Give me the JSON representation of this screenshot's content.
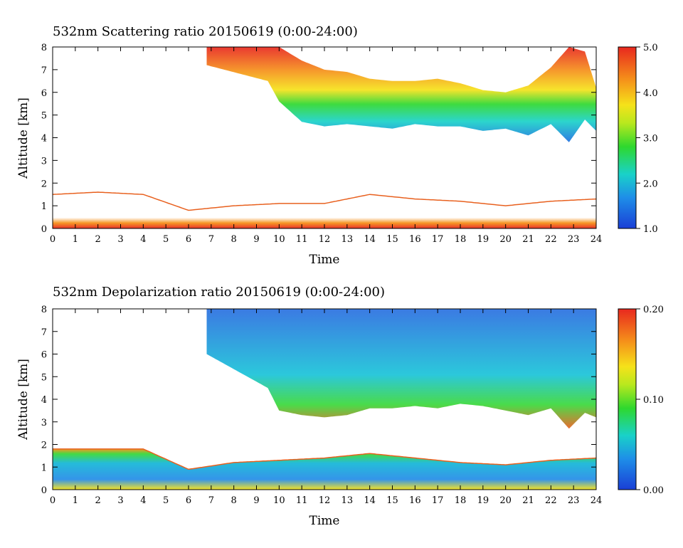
{
  "chart_data": [
    {
      "type": "heatmap",
      "title": "532nm Scattering ratio  20150619 (0:00-24:00)",
      "xlabel": "Time",
      "ylabel": "Altitude [km]",
      "xlim": [
        0,
        24
      ],
      "ylim": [
        0,
        8
      ],
      "x_ticks": [
        "0",
        "1",
        "2",
        "3",
        "4",
        "5",
        "6",
        "7",
        "8",
        "9",
        "10",
        "11",
        "12",
        "13",
        "14",
        "15",
        "16",
        "17",
        "18",
        "19",
        "20",
        "21",
        "22",
        "23",
        "24"
      ],
      "y_ticks": [
        "0",
        "1",
        "2",
        "3",
        "4",
        "5",
        "6",
        "7",
        "8"
      ],
      "colorbar": {
        "min": 1.0,
        "max": 5.0,
        "ticks": [
          "1.0",
          "2.0",
          "3.0",
          "4.0",
          "5.0"
        ]
      },
      "cloud_layers": [
        {
          "name": "upper cloud top",
          "t": [
            6.8,
            9.5,
            10,
            11,
            12,
            13,
            14,
            15,
            16,
            17,
            18,
            19,
            20,
            21,
            22,
            22.8,
            23.5,
            24
          ],
          "alt": [
            8.0,
            8.0,
            8.0,
            7.4,
            7.0,
            6.9,
            6.6,
            6.5,
            6.5,
            6.6,
            6.4,
            6.1,
            6.0,
            6.3,
            7.1,
            8.0,
            7.8,
            6.2
          ]
        },
        {
          "name": "upper cloud base",
          "t": [
            6.8,
            9.5,
            10,
            11,
            12,
            13,
            14,
            15,
            16,
            17,
            18,
            19,
            20,
            21,
            22,
            22.8,
            23.5,
            24
          ],
          "alt": [
            7.2,
            6.5,
            5.6,
            4.7,
            4.5,
            4.6,
            4.5,
            4.4,
            4.6,
            4.5,
            4.5,
            4.3,
            4.4,
            4.1,
            4.6,
            3.8,
            4.8,
            4.3
          ]
        },
        {
          "name": "boundary layer top",
          "t": [
            0,
            2,
            4,
            6,
            8,
            10,
            12,
            14,
            16,
            18,
            20,
            22,
            24
          ],
          "alt": [
            1.5,
            1.6,
            1.5,
            0.8,
            1.0,
            1.1,
            1.1,
            1.5,
            1.3,
            1.2,
            1.0,
            1.2,
            1.3
          ]
        }
      ]
    },
    {
      "type": "heatmap",
      "title": "532nm Depolarization ratio  20150619 (0:00-24:00)",
      "xlabel": "Time",
      "ylabel": "Altitude [km]",
      "xlim": [
        0,
        24
      ],
      "ylim": [
        0,
        8
      ],
      "x_ticks": [
        "0",
        "1",
        "2",
        "3",
        "4",
        "5",
        "6",
        "7",
        "8",
        "9",
        "10",
        "11",
        "12",
        "13",
        "14",
        "15",
        "16",
        "17",
        "18",
        "19",
        "20",
        "21",
        "22",
        "23",
        "24"
      ],
      "y_ticks": [
        "0",
        "1",
        "2",
        "3",
        "4",
        "5",
        "6",
        "7",
        "8"
      ],
      "colorbar": {
        "min": 0.0,
        "max": 0.2,
        "ticks": [
          "0.00",
          "0.10",
          "0.20"
        ]
      },
      "cloud_layers": [
        {
          "name": "upper cloud top",
          "t": [
            6.8,
            24
          ],
          "alt": [
            8.0,
            8.0
          ]
        },
        {
          "name": "upper cloud base",
          "t": [
            6.8,
            9.5,
            10,
            11,
            12,
            13,
            14,
            15,
            16,
            17,
            18,
            19,
            20,
            21,
            22,
            22.8,
            23.5,
            24
          ],
          "alt": [
            6.0,
            4.5,
            3.5,
            3.3,
            3.2,
            3.3,
            3.6,
            3.6,
            3.7,
            3.6,
            3.8,
            3.7,
            3.5,
            3.3,
            3.6,
            2.7,
            3.4,
            3.2
          ]
        },
        {
          "name": "boundary layer top",
          "t": [
            0,
            2,
            4,
            6,
            8,
            10,
            12,
            14,
            16,
            18,
            20,
            22,
            24
          ],
          "alt": [
            1.8,
            1.8,
            1.8,
            0.9,
            1.2,
            1.3,
            1.4,
            1.6,
            1.4,
            1.2,
            1.1,
            1.3,
            1.4
          ]
        }
      ]
    }
  ]
}
